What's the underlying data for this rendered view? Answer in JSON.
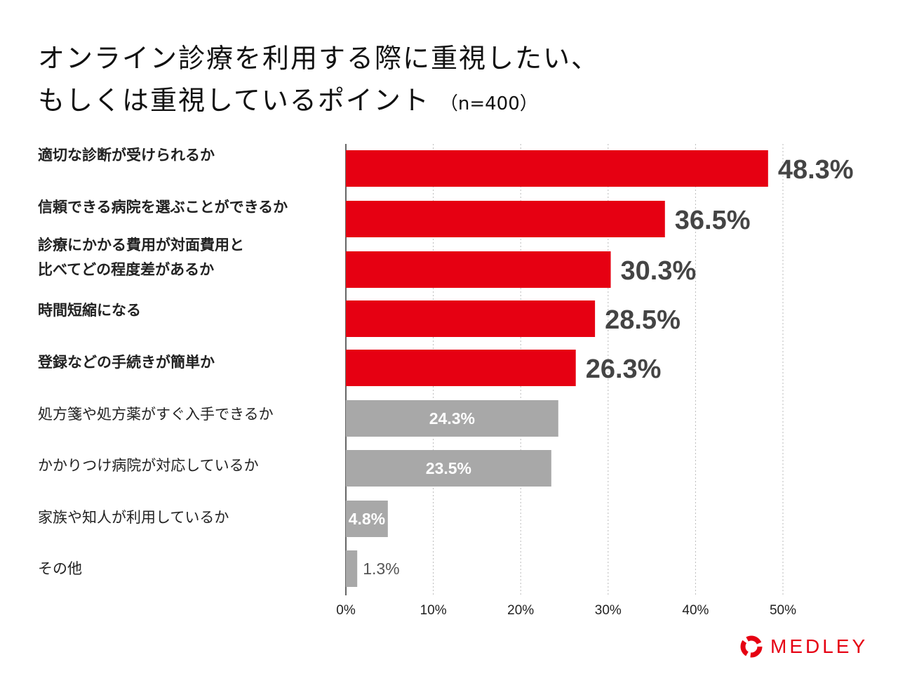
{
  "chart_data": {
    "type": "bar",
    "orientation": "horizontal",
    "title_line1": "オンライン診療を利用する際に重視したい、",
    "title_line2": "もしくは重視しているポイント",
    "sample_note": "（n=400）",
    "categories": [
      "適切な診断が受けられるか",
      "信頼できる病院を選ぶことができるか",
      "診療にかかる費用が対面費用と\n比べてどの程度差があるか",
      "時間短縮になる",
      "登録などの手続きが簡単か",
      "処方箋や処方薬がすぐ入手できるか",
      "かかりつけ病院が対応しているか",
      "家族や知人が利用しているか",
      "その他"
    ],
    "values": [
      48.3,
      36.5,
      30.3,
      28.5,
      26.3,
      24.3,
      23.5,
      4.8,
      1.3
    ],
    "data_labels": [
      "48.3%",
      "36.5%",
      "30.3%",
      "28.5%",
      "26.3%",
      "24.3%",
      "23.5%",
      "4.8%",
      "1.3%"
    ],
    "highlighted_count": 5,
    "xlim": [
      0,
      50
    ],
    "x_ticks": [
      "0%",
      "10%",
      "20%",
      "30%",
      "40%",
      "50%"
    ],
    "grid": "vertical dotted",
    "colors": {
      "highlight": "#e60012",
      "other": "#a8a8a8",
      "label_dark": "#444444"
    }
  },
  "logo": {
    "text": "MEDLEY",
    "color": "#e60012"
  }
}
